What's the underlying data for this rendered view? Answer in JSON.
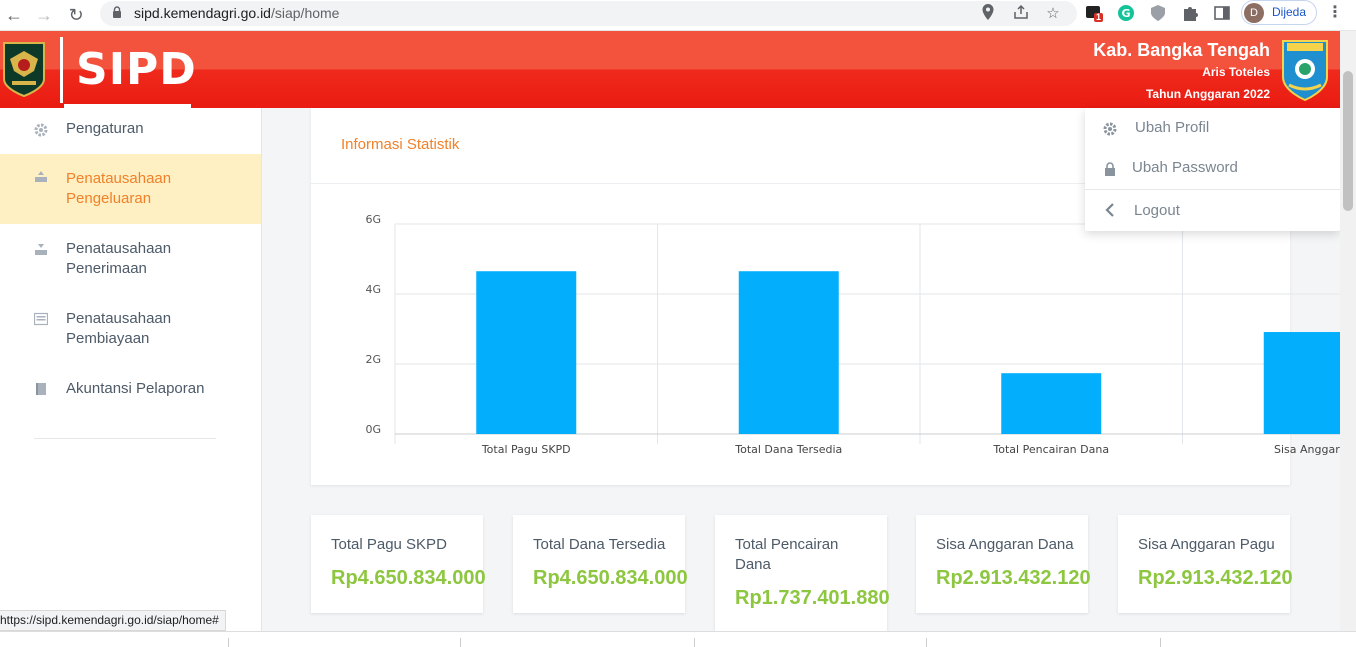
{
  "browser": {
    "url_host": "sipd.kemendagri.go.id",
    "url_path": "/siap/home",
    "extension_badge": "1",
    "profile_initial": "D",
    "profile_name": "Dijeda"
  },
  "header": {
    "app_name": "SIPD",
    "region": "Kab. Bangka Tengah",
    "user": "Aris Toteles",
    "fiscal_year": "Tahun Anggaran 2022",
    "colors": {
      "top": "#f3533d",
      "bottom": "#ea1b12"
    }
  },
  "sidebar": {
    "items": [
      {
        "label": "Pengaturan",
        "icon": "gear-icon",
        "active": false
      },
      {
        "label": "Penatausahaan Pengeluaran",
        "icon": "outbox-icon",
        "active": true
      },
      {
        "label": "Penatausahaan Penerimaan",
        "icon": "inbox-icon",
        "active": false
      },
      {
        "label": "Penatausahaan Pembiayaan",
        "icon": "list-icon",
        "active": false
      },
      {
        "label": "Akuntansi Pelaporan",
        "icon": "book-icon",
        "active": false
      }
    ]
  },
  "statistic": {
    "title": "Informasi Statistik"
  },
  "chart_data": {
    "type": "bar",
    "categories": [
      "Total Pagu SKPD",
      "Total Dana Tersedia",
      "Total Pencairan Dana",
      "Sisa Anggaran"
    ],
    "values": [
      4650834000,
      4650834000,
      1737401880,
      2913432120
    ],
    "yticks": [
      "0G",
      "2G",
      "4G",
      "6G"
    ],
    "ylim": [
      0,
      6000000000
    ],
    "bar_color": "#03aefc",
    "grid": true
  },
  "summary": [
    {
      "label": "Total Pagu SKPD",
      "value": "Rp4.650.834.000"
    },
    {
      "label": "Total Dana Tersedia",
      "value": "Rp4.650.834.000"
    },
    {
      "label": "Total Pencairan Dana",
      "value": "Rp1.737.401.880"
    },
    {
      "label": "Sisa Anggaran Dana",
      "value": "Rp2.913.432.120"
    },
    {
      "label": "Sisa Anggaran Pagu",
      "value": "Rp2.913.432.120"
    }
  ],
  "dropdown": {
    "items": [
      {
        "label": "Ubah Profil",
        "icon": "gear-icon"
      },
      {
        "label": "Ubah Password",
        "icon": "lock-icon"
      },
      {
        "label": "Logout",
        "icon": "chevron-left-icon"
      }
    ]
  },
  "status_link": "https://sipd.kemendagri.go.id/siap/home#"
}
